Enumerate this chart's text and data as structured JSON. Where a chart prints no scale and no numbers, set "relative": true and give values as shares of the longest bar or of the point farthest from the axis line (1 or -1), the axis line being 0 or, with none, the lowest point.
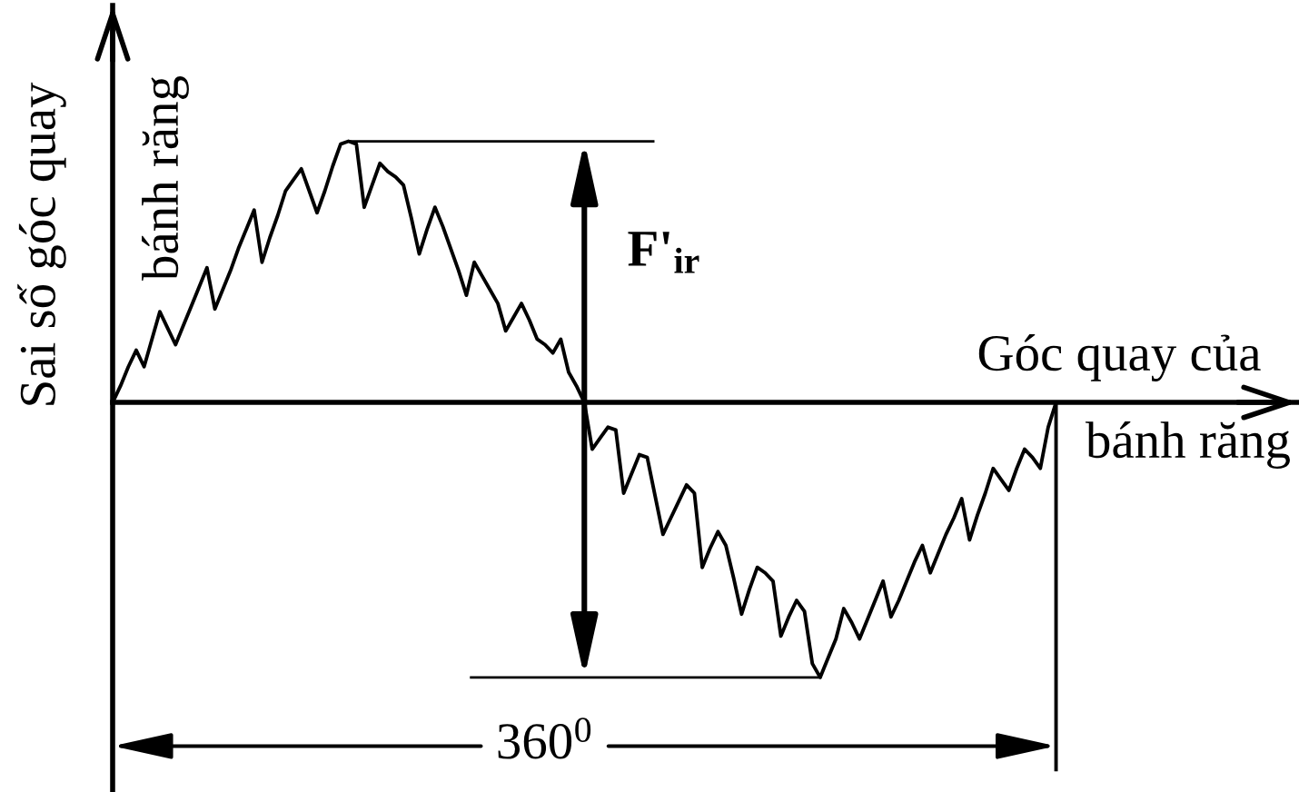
{
  "chart_data": {
    "type": "line",
    "relative": true,
    "xlabel": "Góc quay của\nbánh răng",
    "ylabel": "Sai số góc quay\nbánh răng",
    "annotations": [
      "F'$_{ir}$",
      "360$^{0}$"
    ],
    "categories": [
      null,
      null,
      null,
      null,
      null,
      null,
      null,
      null,
      null,
      null,
      null,
      null,
      null,
      null,
      null,
      null,
      null,
      null,
      null,
      null,
      null,
      null,
      null,
      null,
      null,
      null,
      null,
      null,
      null,
      null,
      null,
      null,
      null,
      null,
      null,
      null,
      null,
      null,
      null,
      null,
      null,
      null,
      null,
      null,
      null,
      null,
      null,
      null,
      null,
      null,
      null,
      null,
      null,
      null,
      null,
      null,
      null,
      null,
      null,
      null,
      null,
      null,
      null,
      null,
      null,
      null,
      null,
      null,
      null,
      null,
      null,
      null,
      null,
      null,
      null,
      null,
      null,
      null,
      null,
      null,
      null,
      null,
      null,
      null,
      null,
      null,
      null,
      null,
      null,
      null,
      null,
      null,
      null,
      null,
      null,
      null,
      null,
      null,
      null,
      null,
      null,
      null,
      null,
      null,
      null,
      null,
      null,
      null,
      null,
      null,
      null,
      null,
      null,
      null,
      null,
      null,
      null,
      null,
      null,
      null,
      null
    ],
    "series": [
      {
        "color": "#000000",
        "values": [
          0,
          0.06,
          0.13,
          0.19,
          0.13,
          0.23,
          0.33,
          0.27,
          0.21,
          0.28,
          0.35,
          0.42,
          0.49,
          0.34,
          0.41,
          0.48,
          0.56,
          0.63,
          0.7,
          0.51,
          0.6,
          0.68,
          0.77,
          0.81,
          0.85,
          0.77,
          0.69,
          0.77,
          0.86,
          0.94,
          0.95,
          0.94,
          0.71,
          0.79,
          0.87,
          0.84,
          0.82,
          0.79,
          0.67,
          0.54,
          0.63,
          0.71,
          0.64,
          0.56,
          0.48,
          0.39,
          0.51,
          0.46,
          0.41,
          0.36,
          0.26,
          0.31,
          0.36,
          0.3,
          0.23,
          0.21,
          0.18,
          0.23,
          0.11,
          0.06,
          0,
          -0.17,
          -0.13,
          -0.09,
          -0.1,
          -0.33,
          -0.26,
          -0.19,
          -0.2,
          -0.34,
          -0.48,
          -0.42,
          -0.36,
          -0.3,
          -0.33,
          -0.6,
          -0.53,
          -0.47,
          -0.52,
          -0.64,
          -0.77,
          -0.68,
          -0.6,
          -0.62,
          -0.65,
          -0.85,
          -0.78,
          -0.72,
          -0.76,
          -0.95,
          -1,
          -0.93,
          -0.86,
          -0.75,
          -0.8,
          -0.86,
          -0.79,
          -0.72,
          -0.65,
          -0.78,
          -0.72,
          -0.65,
          -0.58,
          -0.52,
          -0.62,
          -0.55,
          -0.48,
          -0.42,
          -0.35,
          -0.5,
          -0.41,
          -0.33,
          -0.24,
          -0.28,
          -0.32,
          -0.24,
          -0.17,
          -0.2,
          -0.24,
          -0.09,
          0
        ]
      }
    ]
  }
}
